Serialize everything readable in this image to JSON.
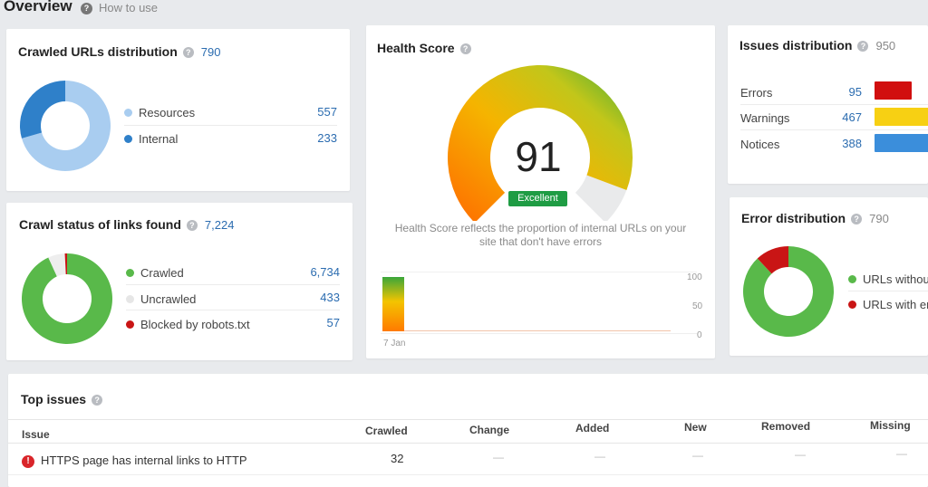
{
  "header": {
    "title": "Overview",
    "how_to_use": "How to use"
  },
  "crawled_urls": {
    "title": "Crawled URLs distribution",
    "total": "790",
    "items": [
      {
        "label": "Resources",
        "value": "557",
        "color": "#a9cdf0",
        "amount": 557
      },
      {
        "label": "Internal",
        "value": "233",
        "color": "#2f80c9",
        "amount": 233
      }
    ]
  },
  "crawl_status": {
    "title": "Crawl status of links found",
    "total": "7,224",
    "items": [
      {
        "label": "Crawled",
        "value": "6,734",
        "color": "#59b94a",
        "amount": 6734
      },
      {
        "label": "Uncrawled",
        "value": "433",
        "color": "#eeeeee",
        "amount": 433
      },
      {
        "label": "Blocked by robots.txt",
        "value": "57",
        "color": "#c91515",
        "amount": 57
      }
    ]
  },
  "health": {
    "title": "Health Score",
    "score": "91",
    "score_value": 91,
    "badge": "Excellent",
    "description_line1": "Health Score reflects the proportion of internal URLs on your",
    "description_line2": "site that don't have errors",
    "history": {
      "y_ticks": [
        "100",
        "50",
        "0"
      ],
      "x_label": "7 Jan"
    }
  },
  "issues_dist": {
    "title": "Issues distribution",
    "total": "950",
    "items": [
      {
        "label": "Errors",
        "value": "95",
        "color": "#d10f0f"
      },
      {
        "label": "Warnings",
        "value": "467",
        "color": "#f7d013"
      },
      {
        "label": "Notices",
        "value": "388",
        "color": "#3b8edb"
      }
    ]
  },
  "error_dist": {
    "title": "Error distribution",
    "total": "790",
    "items": [
      {
        "label": "URLs without",
        "color": "#59b94a",
        "fraction": 0.88
      },
      {
        "label": "URLs with erro",
        "color": "#c91515",
        "fraction": 0.12
      }
    ]
  },
  "top_issues": {
    "title": "Top issues",
    "columns": [
      "Issue",
      "Crawled",
      "Change",
      "Added",
      "New",
      "Removed",
      "Missing"
    ],
    "rows": [
      {
        "issue": "HTTPS page has internal links to HTTP",
        "crawled": "32",
        "change": "—",
        "added": "—",
        "new": "—",
        "removed": "—",
        "missing": "—"
      }
    ]
  }
}
